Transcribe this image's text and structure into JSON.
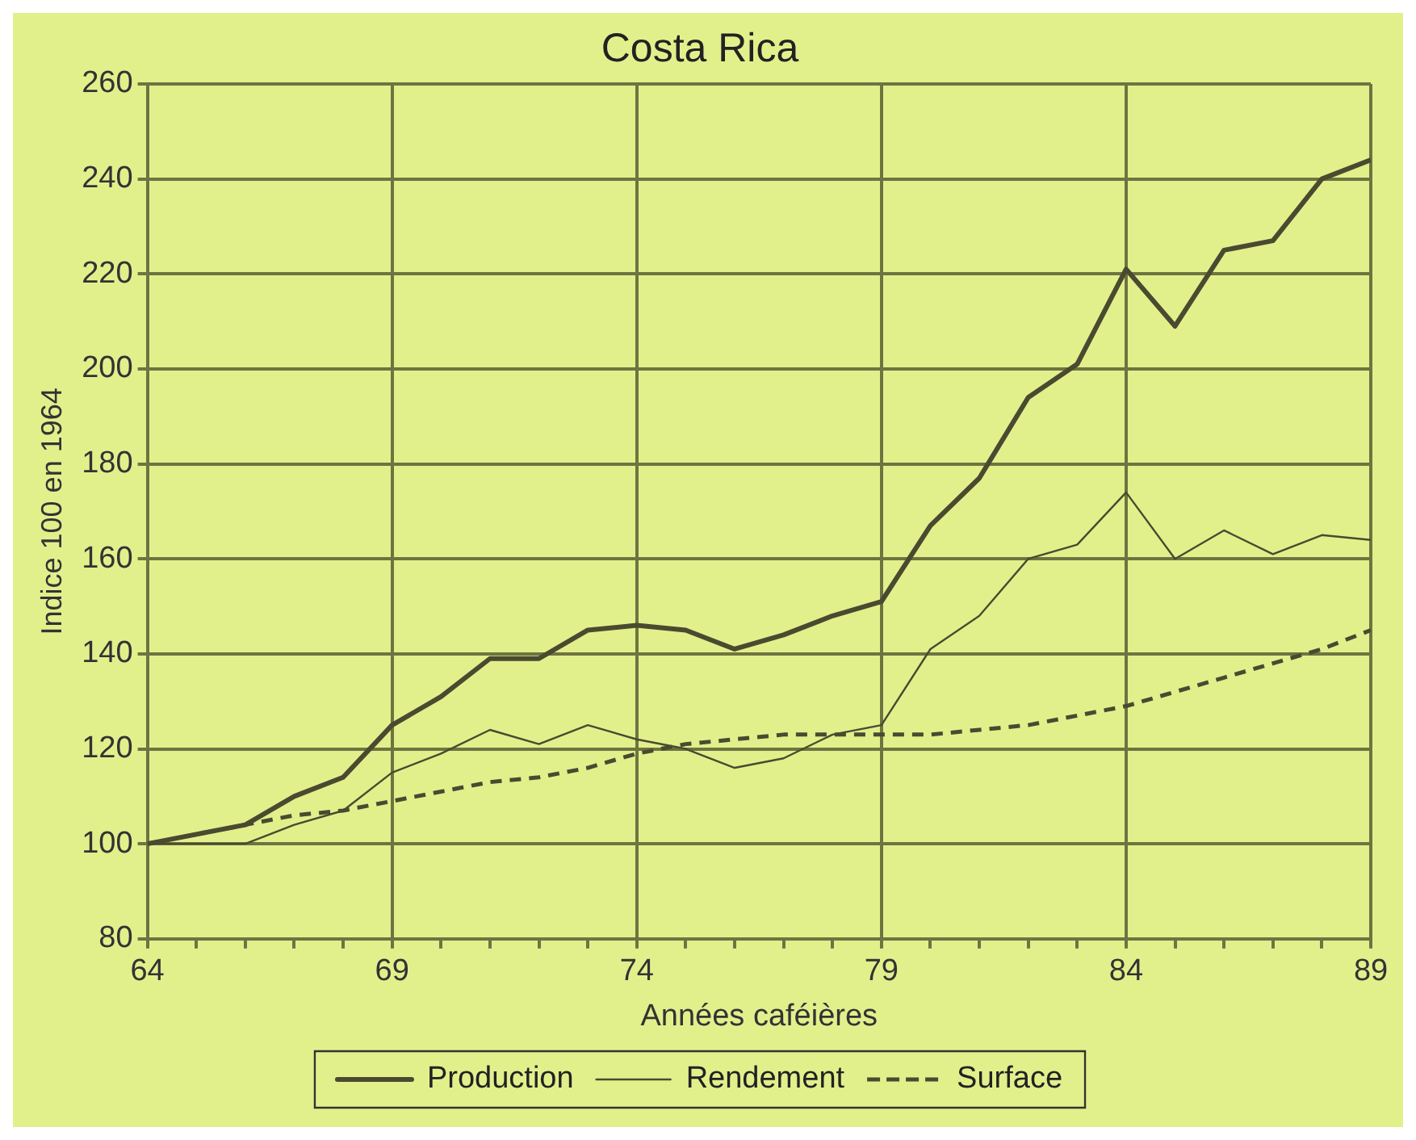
{
  "chart_data": {
    "type": "line",
    "title": "Costa Rica",
    "xlabel": "Années caféières",
    "ylabel": "Indice 100 en 1964",
    "x": [
      64,
      65,
      66,
      67,
      68,
      69,
      70,
      71,
      72,
      73,
      74,
      75,
      76,
      77,
      78,
      79,
      80,
      81,
      82,
      83,
      84,
      85,
      86,
      87,
      88,
      89
    ],
    "series": [
      {
        "name": "Production",
        "color": "#4a4a30",
        "line_style": "solid",
        "values": [
          100,
          102,
          104,
          110,
          114,
          125,
          131,
          139,
          139,
          145,
          146,
          145,
          141,
          144,
          148,
          151,
          167,
          177,
          194,
          201,
          221,
          209,
          225,
          227,
          240,
          244
        ]
      },
      {
        "name": "Rendement",
        "color": "#4a4a30",
        "line_style": "solid",
        "values": [
          100,
          100,
          100,
          104,
          107,
          115,
          119,
          124,
          121,
          125,
          122,
          120,
          116,
          118,
          123,
          125,
          141,
          148,
          160,
          163,
          174,
          160,
          166,
          161,
          165,
          164
        ]
      },
      {
        "name": "Surface",
        "color": "#4a4a30",
        "line_style": "dashed",
        "values": [
          100,
          102,
          104,
          106,
          107,
          109,
          111,
          113,
          114,
          116,
          119,
          121,
          122,
          123,
          123,
          123,
          123,
          124,
          125,
          127,
          129,
          132,
          135,
          138,
          141,
          145
        ]
      }
    ],
    "xlim": [
      64,
      89
    ],
    "xticks": [
      64,
      {
        "value": 65,
        "label": null
      },
      {
        "value": 66,
        "label": null
      },
      {
        "value": 67,
        "label": null
      },
      {
        "value": 68,
        "label": null
      },
      69,
      {
        "value": 70,
        "label": null
      },
      {
        "value": 71,
        "label": null
      },
      {
        "value": 72,
        "label": null
      },
      {
        "value": 73,
        "label": null
      },
      74,
      {
        "value": 75,
        "label": null
      },
      {
        "value": 76,
        "label": null
      },
      {
        "value": 77,
        "label": null
      },
      {
        "value": 78,
        "label": null
      },
      79,
      {
        "value": 80,
        "label": null
      },
      {
        "value": 81,
        "label": null
      },
      {
        "value": 82,
        "label": null
      },
      {
        "value": 83,
        "label": null
      },
      84,
      {
        "value": 85,
        "label": null
      },
      {
        "value": 86,
        "label": null
      },
      {
        "value": 87,
        "label": null
      },
      {
        "value": 88,
        "label": null
      },
      89
    ],
    "ylim": [
      80,
      260
    ],
    "yticks": [
      80,
      100,
      120,
      140,
      160,
      180,
      200,
      220,
      240,
      260
    ],
    "grid": true,
    "legend": "bottom",
    "marker": "none"
  }
}
